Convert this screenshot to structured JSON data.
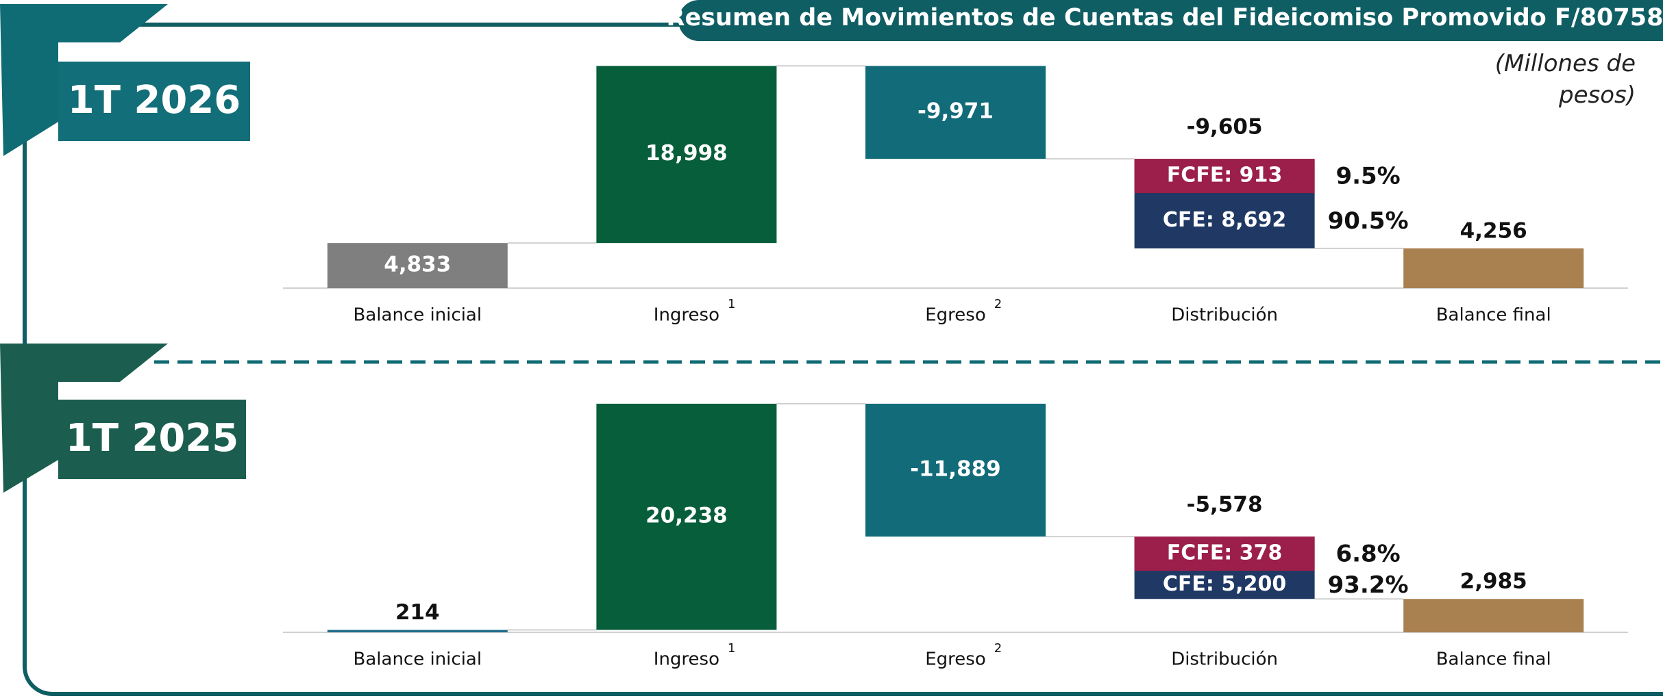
{
  "title": "Resumen de Movimientos de Cuentas del Fideicomiso Promovido F/80758",
  "unit_note": "(Millones de pesos)",
  "chart_data": [
    {
      "type": "waterfall",
      "period": "1T 2026",
      "categories": [
        "Balance inicial",
        "Ingreso",
        "Egreso",
        "Distribución",
        "Balance final"
      ],
      "category_notes": [
        null,
        "1",
        "2",
        null,
        null
      ],
      "values": [
        4833,
        18998,
        -9971,
        -9605,
        4256
      ],
      "value_labels": [
        "4,833",
        "18,998",
        "-9,971",
        "-9,605",
        "4,256"
      ],
      "totals": [
        true,
        false,
        false,
        false,
        true
      ],
      "colors": [
        "#7f7f7f",
        "#075e3b",
        "#126b78",
        null,
        "#a9804f"
      ],
      "segments": [
        null,
        null,
        null,
        [
          {
            "value": 8692,
            "value_label": "CFE: 8,692",
            "share": 90.5,
            "share_label": "90.5%",
            "color": "#1f3864"
          },
          {
            "value": 913,
            "value_label": "FCFE: 913",
            "share": 9.5,
            "share_label": "9.5%",
            "color": "#9b1f4a"
          }
        ],
        null
      ],
      "ylim": [
        0,
        24000
      ]
    },
    {
      "type": "waterfall",
      "period": "1T 2025",
      "categories": [
        "Balance inicial",
        "Ingreso",
        "Egreso",
        "Distribución",
        "Balance final"
      ],
      "category_notes": [
        null,
        "1",
        "2",
        null,
        null
      ],
      "values": [
        214,
        20238,
        -11889,
        -5578,
        2985
      ],
      "value_labels": [
        "214",
        "20,238",
        "-11,889",
        "-5,578",
        "2,985"
      ],
      "totals": [
        true,
        false,
        false,
        false,
        true
      ],
      "colors": [
        "#1f6d8a",
        "#075e3b",
        "#126b78",
        null,
        "#a9804f"
      ],
      "segments": [
        null,
        null,
        null,
        [
          {
            "value": 5200,
            "value_label": "CFE: 5,200",
            "share": 93.2,
            "share_label": "93.2%",
            "color": "#1f3864"
          },
          {
            "value": 378,
            "value_label": "FCFE: 378",
            "share": 6.8,
            "share_label": "6.8%",
            "color": "#9b1f4a"
          }
        ],
        null
      ],
      "ylim": [
        0,
        21000
      ]
    }
  ]
}
